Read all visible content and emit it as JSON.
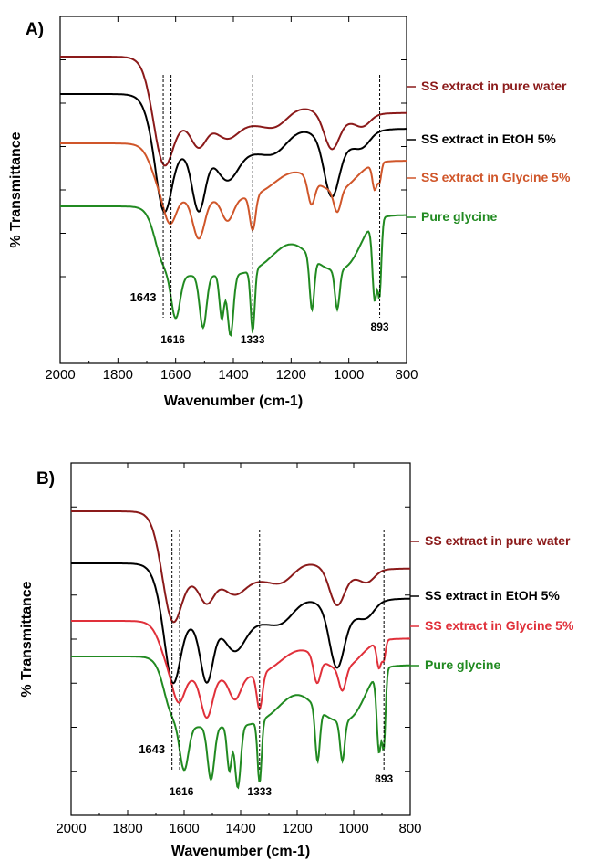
{
  "chart_data": [
    {
      "type": "line",
      "panel_label": "A)",
      "xlabel": "Wavenumber (cm-1)",
      "ylabel": "% Transmittance",
      "xlim": [
        2000,
        800
      ],
      "x_ticks": [
        "2000",
        "1800",
        "1600",
        "1400",
        "1200",
        "1000",
        "800"
      ],
      "grid": false,
      "legend_position": "right",
      "annotations": [
        {
          "x": 1643,
          "label": "1643"
        },
        {
          "x": 1616,
          "label": "1616"
        },
        {
          "x": 1333,
          "label": "1333"
        },
        {
          "x": 893,
          "label": "893"
        }
      ],
      "series": [
        {
          "name": "SS extract in pure water",
          "color": "#8b1a1a"
        },
        {
          "name": "SS extract in EtOH 5%",
          "color": "#000000"
        },
        {
          "name": "SS extract in Glycine 5%",
          "color": "#d0562a"
        },
        {
          "name": "Pure glycine",
          "color": "#218a21"
        }
      ]
    },
    {
      "type": "line",
      "panel_label": "B)",
      "xlabel": "Wavenumber (cm-1)",
      "ylabel": "% Transmittance",
      "xlim": [
        2000,
        800
      ],
      "x_ticks": [
        "2000",
        "1800",
        "1600",
        "1400",
        "1200",
        "1000",
        "800"
      ],
      "grid": false,
      "legend_position": "right",
      "annotations": [
        {
          "x": 1643,
          "label": "1643"
        },
        {
          "x": 1616,
          "label": "1616"
        },
        {
          "x": 1333,
          "label": "1333"
        },
        {
          "x": 893,
          "label": "893"
        }
      ],
      "series": [
        {
          "name": "SS extract in pure water",
          "color": "#8b1a1a"
        },
        {
          "name": "SS extract in EtOH 5%",
          "color": "#000000"
        },
        {
          "name": "SS extract in Glycine 5%",
          "color": "#e0303a"
        },
        {
          "name": "Pure glycine",
          "color": "#218a21"
        }
      ]
    }
  ]
}
